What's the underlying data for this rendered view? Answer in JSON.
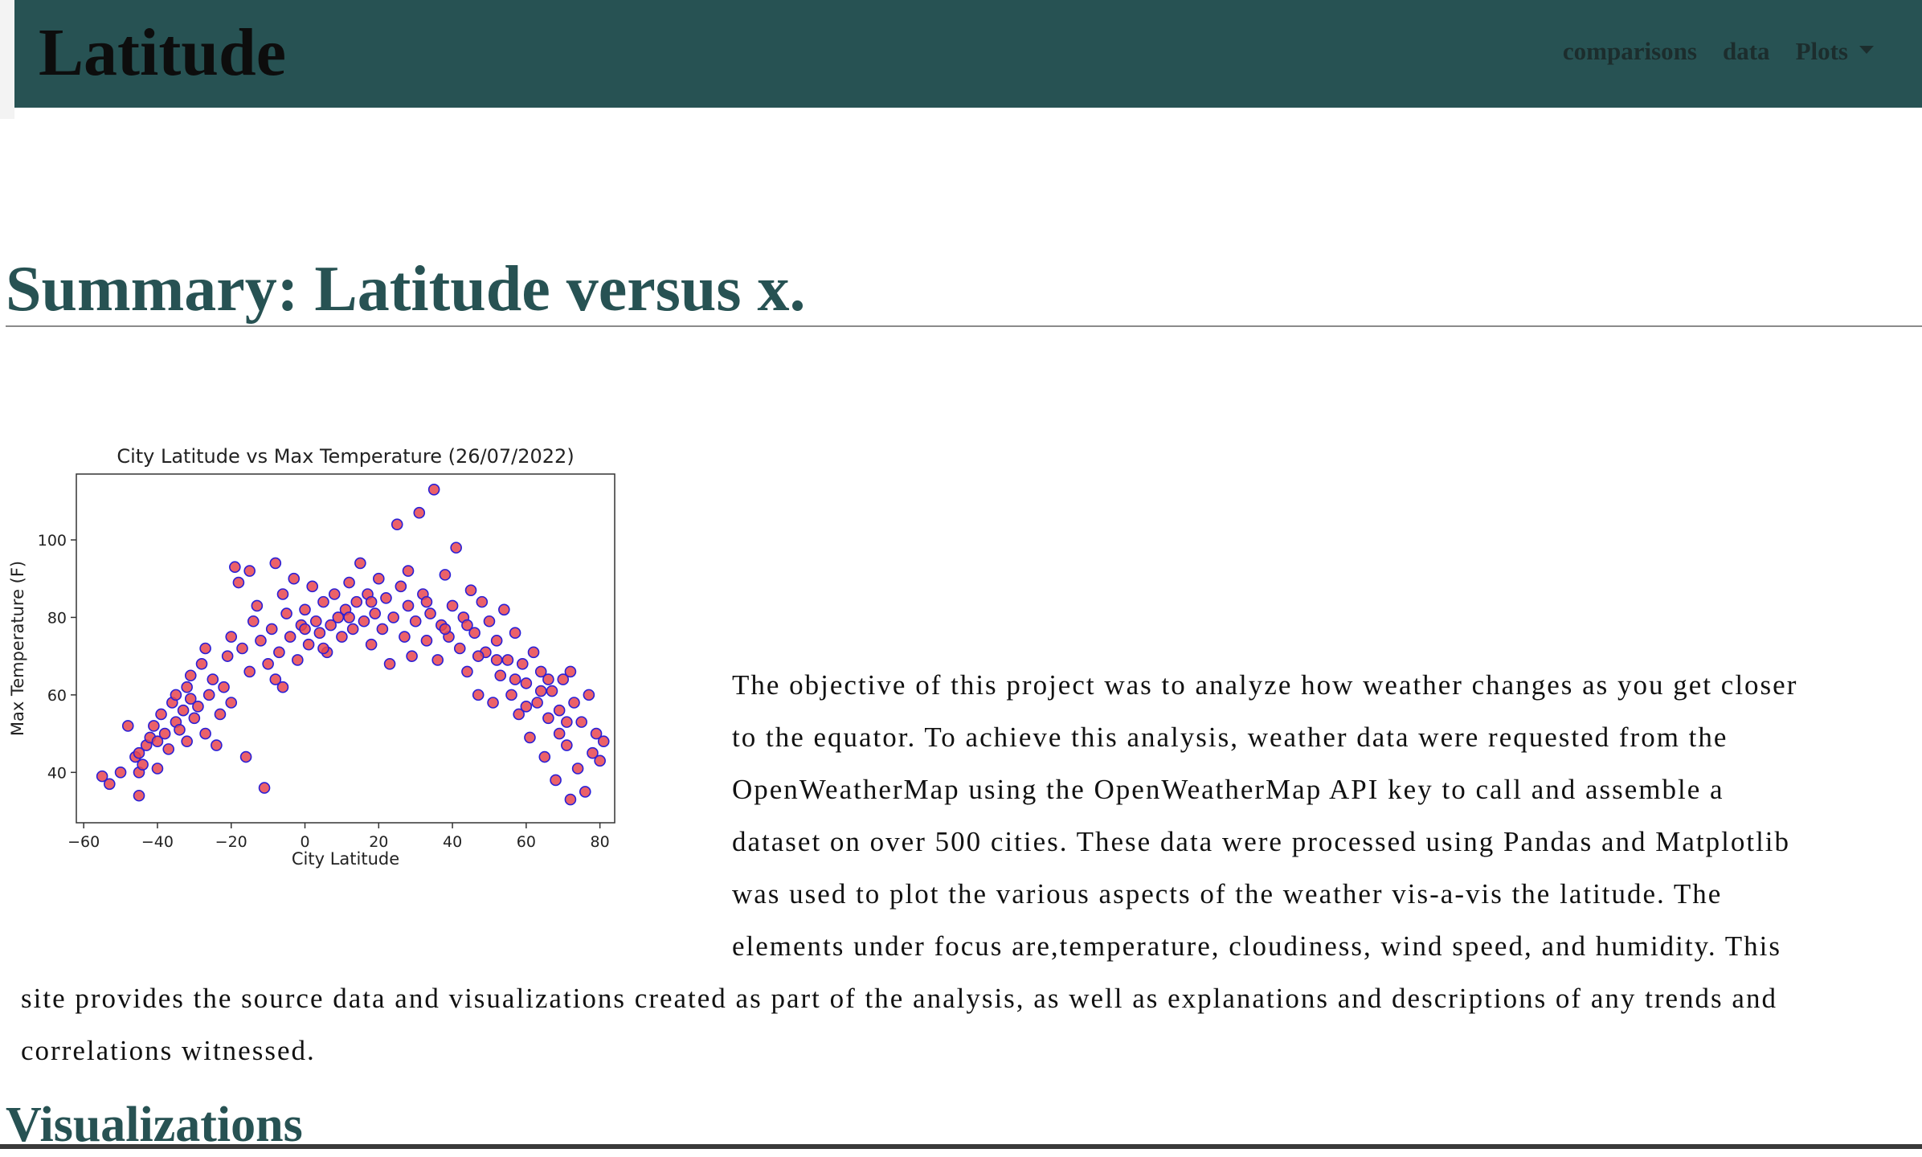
{
  "navbar": {
    "brand": "Latitude",
    "links": [
      {
        "label": "comparisons"
      },
      {
        "label": "data"
      },
      {
        "label": "Plots"
      }
    ]
  },
  "summary": {
    "title": "Summary: Latitude versus x.",
    "paragraph": "The objective of this project was to analyze how weather changes as you get closer to the equator. To achieve this analysis, weather data were requested from the OpenWeatherMap using the OpenWeatherMap API key to call and assemble a dataset on over 500 cities. These data were processed using Pandas and Matplotlib was used to plot the various aspects of the weather vis-a-vis the latitude. The elements under focus are,temperature, cloudiness, wind speed, and humidity. This site provides the source data and visualizations created as part of the analysis, as well as explanations and descriptions of any trends and correlations witnessed."
  },
  "visualizations": {
    "title": "Visualizations"
  },
  "colors": {
    "navbar": "#275253",
    "heading": "#275253",
    "marker_fill": "#e8454f",
    "marker_edge": "#2a1fd6"
  },
  "chart_data": {
    "type": "scatter",
    "title": "City Latitude vs Max Temperature (26/07/2022)",
    "xlabel": "City Latitude",
    "ylabel": "Max Temperature (F)",
    "xlim": [
      -62,
      84
    ],
    "ylim": [
      27,
      117
    ],
    "xticks": [
      -60,
      -40,
      -20,
      0,
      20,
      40,
      60,
      80
    ],
    "yticks": [
      40,
      60,
      80,
      100
    ],
    "grid": false,
    "legend": "none",
    "points": [
      [
        -55,
        39
      ],
      [
        -53,
        37
      ],
      [
        -46,
        44
      ],
      [
        -45,
        45
      ],
      [
        -45,
        40
      ],
      [
        -45,
        34
      ],
      [
        -44,
        42
      ],
      [
        -43,
        47
      ],
      [
        -42,
        49
      ],
      [
        -41,
        52
      ],
      [
        -40,
        41
      ],
      [
        -40,
        48
      ],
      [
        -39,
        55
      ],
      [
        -38,
        50
      ],
      [
        -37,
        46
      ],
      [
        -36,
        58
      ],
      [
        -35,
        53
      ],
      [
        -35,
        60
      ],
      [
        -34,
        51
      ],
      [
        -33,
        56
      ],
      [
        -32,
        48
      ],
      [
        -32,
        62
      ],
      [
        -31,
        65
      ],
      [
        -30,
        54
      ],
      [
        -29,
        57
      ],
      [
        -28,
        68
      ],
      [
        -27,
        50
      ],
      [
        -26,
        60
      ],
      [
        -25,
        64
      ],
      [
        -24,
        47
      ],
      [
        -23,
        55
      ],
      [
        -22,
        62
      ],
      [
        -21,
        70
      ],
      [
        -20,
        75
      ],
      [
        -20,
        58
      ],
      [
        -19,
        93
      ],
      [
        -18,
        89
      ],
      [
        -17,
        72
      ],
      [
        -16,
        44
      ],
      [
        -15,
        66
      ],
      [
        -14,
        79
      ],
      [
        -13,
        83
      ],
      [
        -12,
        74
      ],
      [
        -11,
        36
      ],
      [
        -10,
        68
      ],
      [
        -9,
        77
      ],
      [
        -8,
        94
      ],
      [
        -7,
        71
      ],
      [
        -6,
        86
      ],
      [
        -6,
        62
      ],
      [
        -5,
        81
      ],
      [
        -4,
        75
      ],
      [
        -3,
        90
      ],
      [
        -2,
        69
      ],
      [
        -1,
        78
      ],
      [
        0,
        82
      ],
      [
        1,
        73
      ],
      [
        2,
        88
      ],
      [
        3,
        79
      ],
      [
        4,
        76
      ],
      [
        5,
        84
      ],
      [
        6,
        71
      ],
      [
        7,
        78
      ],
      [
        8,
        86
      ],
      [
        9,
        80
      ],
      [
        10,
        75
      ],
      [
        11,
        82
      ],
      [
        12,
        89
      ],
      [
        13,
        77
      ],
      [
        14,
        84
      ],
      [
        15,
        94
      ],
      [
        16,
        79
      ],
      [
        17,
        86
      ],
      [
        18,
        73
      ],
      [
        19,
        81
      ],
      [
        20,
        90
      ],
      [
        21,
        77
      ],
      [
        22,
        85
      ],
      [
        23,
        68
      ],
      [
        24,
        80
      ],
      [
        25,
        104
      ],
      [
        26,
        88
      ],
      [
        27,
        75
      ],
      [
        28,
        83
      ],
      [
        29,
        70
      ],
      [
        30,
        79
      ],
      [
        31,
        107
      ],
      [
        32,
        86
      ],
      [
        33,
        74
      ],
      [
        34,
        81
      ],
      [
        35,
        113
      ],
      [
        36,
        69
      ],
      [
        37,
        78
      ],
      [
        38,
        91
      ],
      [
        39,
        75
      ],
      [
        40,
        83
      ],
      [
        41,
        98
      ],
      [
        42,
        72
      ],
      [
        43,
        80
      ],
      [
        44,
        66
      ],
      [
        45,
        87
      ],
      [
        46,
        76
      ],
      [
        47,
        60
      ],
      [
        48,
        84
      ],
      [
        49,
        71
      ],
      [
        50,
        79
      ],
      [
        51,
        58
      ],
      [
        52,
        74
      ],
      [
        53,
        65
      ],
      [
        54,
        82
      ],
      [
        55,
        69
      ],
      [
        56,
        60
      ],
      [
        57,
        76
      ],
      [
        58,
        55
      ],
      [
        59,
        68
      ],
      [
        60,
        63
      ],
      [
        61,
        49
      ],
      [
        62,
        71
      ],
      [
        63,
        58
      ],
      [
        64,
        66
      ],
      [
        65,
        44
      ],
      [
        66,
        54
      ],
      [
        67,
        61
      ],
      [
        68,
        38
      ],
      [
        69,
        50
      ],
      [
        70,
        64
      ],
      [
        71,
        47
      ],
      [
        72,
        33
      ],
      [
        73,
        58
      ],
      [
        74,
        41
      ],
      [
        75,
        53
      ],
      [
        76,
        35
      ],
      [
        77,
        60
      ],
      [
        78,
        45
      ],
      [
        79,
        50
      ],
      [
        80,
        43
      ],
      [
        81,
        48
      ],
      [
        -50,
        40
      ],
      [
        -48,
        52
      ],
      [
        -31,
        59
      ],
      [
        -27,
        72
      ],
      [
        -15,
        92
      ],
      [
        -8,
        64
      ],
      [
        0,
        77
      ],
      [
        5,
        72
      ],
      [
        12,
        80
      ],
      [
        18,
        84
      ],
      [
        28,
        92
      ],
      [
        33,
        84
      ],
      [
        38,
        77
      ],
      [
        44,
        78
      ],
      [
        47,
        70
      ],
      [
        52,
        69
      ],
      [
        57,
        64
      ],
      [
        60,
        57
      ],
      [
        64,
        61
      ],
      [
        66,
        64
      ],
      [
        69,
        56
      ],
      [
        71,
        53
      ],
      [
        72,
        66
      ]
    ]
  }
}
